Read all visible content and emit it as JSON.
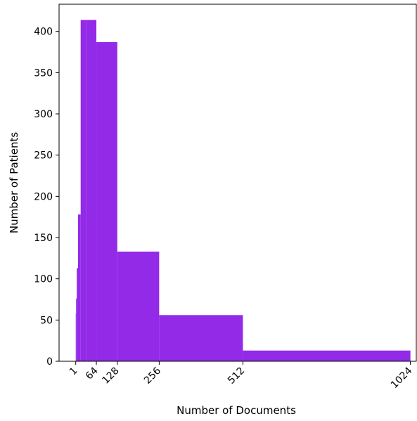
{
  "chart_data": {
    "type": "bar",
    "title": "",
    "xlabel": "Number of Documents",
    "ylabel": "Number of Patients",
    "xlim": [
      -50,
      1042
    ],
    "ylim": [
      0,
      433
    ],
    "grid": false,
    "x_ticks": [
      1,
      64,
      128,
      256,
      512,
      1024
    ],
    "x_tick_labels": [
      "1",
      "64",
      "128",
      "256",
      "512",
      "1024"
    ],
    "y_ticks": [
      0,
      50,
      100,
      150,
      200,
      250,
      300,
      350,
      400
    ],
    "y_tick_labels": [
      "0",
      "50",
      "100",
      "150",
      "200",
      "250",
      "300",
      "350",
      "400"
    ],
    "bar_color": "#922ae8",
    "bins": [
      {
        "x_start": 1,
        "x_end": 2,
        "value": 58
      },
      {
        "x_start": 2,
        "x_end": 4,
        "value": 76
      },
      {
        "x_start": 4,
        "x_end": 8,
        "value": 113
      },
      {
        "x_start": 8,
        "x_end": 16,
        "value": 178
      },
      {
        "x_start": 16,
        "x_end": 32,
        "value": 414
      },
      {
        "x_start": 32,
        "x_end": 64,
        "value": 414
      },
      {
        "x_start": 64,
        "x_end": 128,
        "value": 387
      },
      {
        "x_start": 128,
        "x_end": 256,
        "value": 133
      },
      {
        "x_start": 256,
        "x_end": 512,
        "value": 56
      },
      {
        "x_start": 512,
        "x_end": 1024,
        "value": 13
      }
    ]
  }
}
